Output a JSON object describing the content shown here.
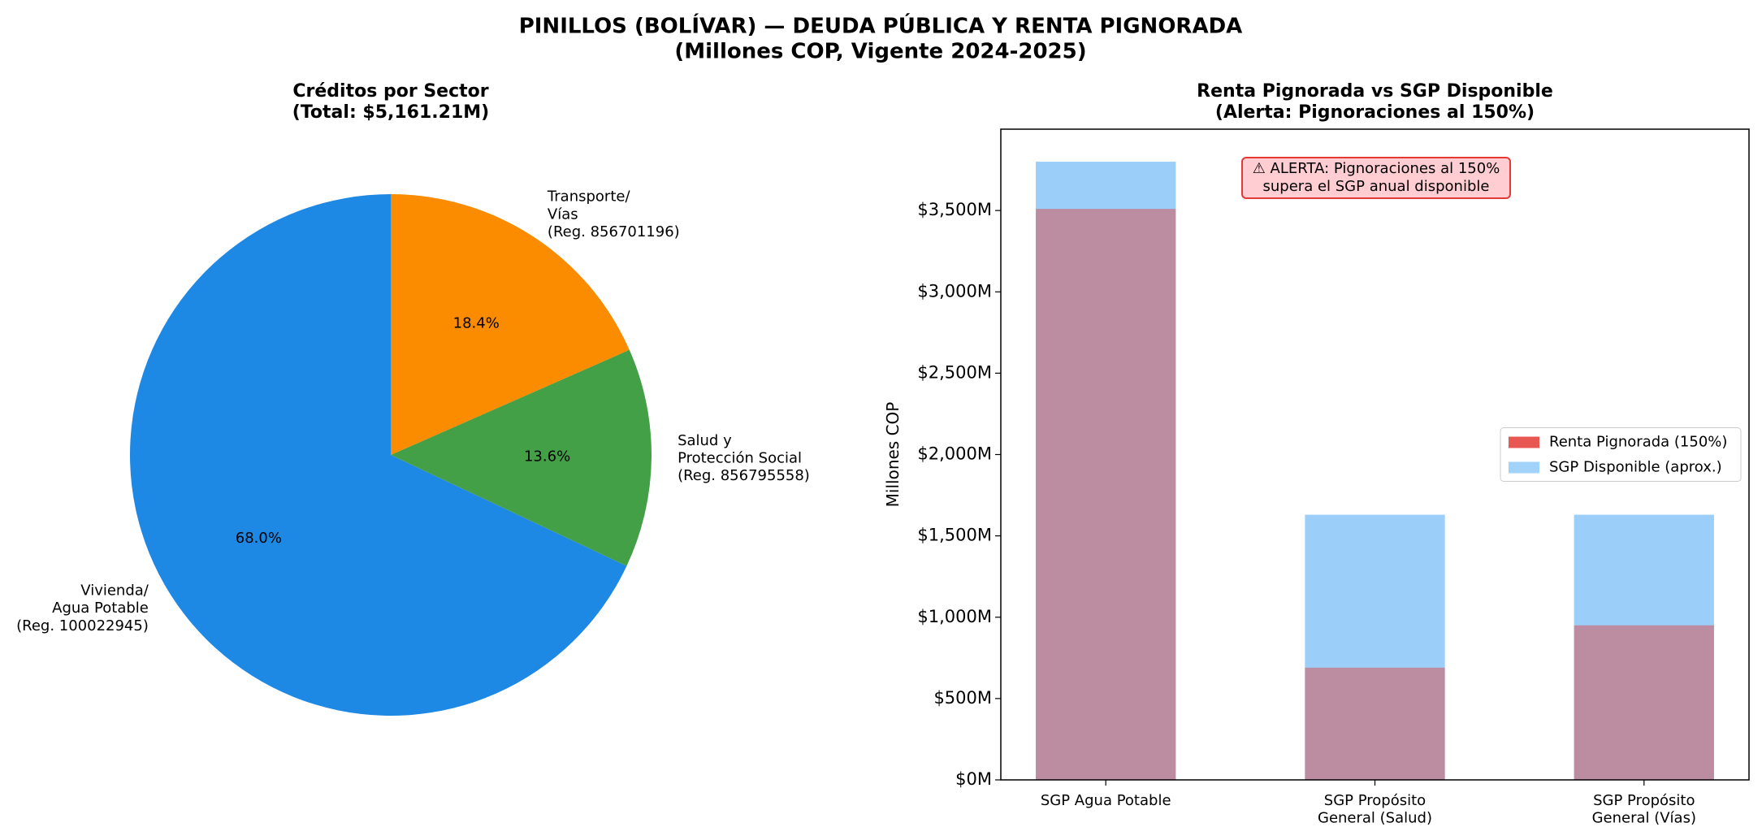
{
  "title": "PINILLOS (BOLÍVAR) — DEUDA PÚBLICA Y RENTA PIGNORADA\n(Millones COP, Vigente 2024-2025)",
  "chart_data": [
    {
      "type": "pie",
      "title": "Créditos por Sector\n(Total: $5,161.21M)",
      "labels": [
        "Vivienda/\nAgua Potable\n(Reg. 100022945)",
        "Salud y\nProtección Social\n(Reg. 856795558)",
        "Transporte/\nVías\n(Reg. 856701196)"
      ],
      "values": [
        68.0,
        13.6,
        18.4
      ],
      "value_labels": [
        "68.0%",
        "13.6%",
        "18.4%"
      ],
      "colors": [
        "#1e88e5",
        "#43a047",
        "#fb8c00"
      ]
    },
    {
      "type": "bar",
      "title": "Renta Pignorada vs SGP Disponible\n(Alerta: Pignoraciones al 150%)",
      "ylabel": "Millones COP",
      "categories": [
        "SGP Agua Potable",
        "SGP Propósito\nGeneral (Salud)",
        "SGP Propósito\nGeneral (Vías)"
      ],
      "series": [
        {
          "name": "Renta Pignorada (150%)",
          "color": "#e53935",
          "values": [
            3510,
            690,
            950
          ]
        },
        {
          "name": "SGP Disponible (aprox.)",
          "color": "#90caf9",
          "values": [
            3800,
            1630,
            1630
          ]
        }
      ],
      "ylim": [
        0,
        4000
      ],
      "yticks": [
        {
          "value": 0,
          "label": "$0M"
        },
        {
          "value": 500,
          "label": "$500M"
        },
        {
          "value": 1000,
          "label": "$1,000M"
        },
        {
          "value": 1500,
          "label": "$1,500M"
        },
        {
          "value": 2000,
          "label": "$2,000M"
        },
        {
          "value": 2500,
          "label": "$2,500M"
        },
        {
          "value": 3000,
          "label": "$3,000M"
        },
        {
          "value": 3500,
          "label": "$3,500M"
        }
      ],
      "annotation": "⚠ ALERTA: Pignoraciones al 150%\nsupera el SGP anual disponible",
      "legend": "center right"
    }
  ]
}
